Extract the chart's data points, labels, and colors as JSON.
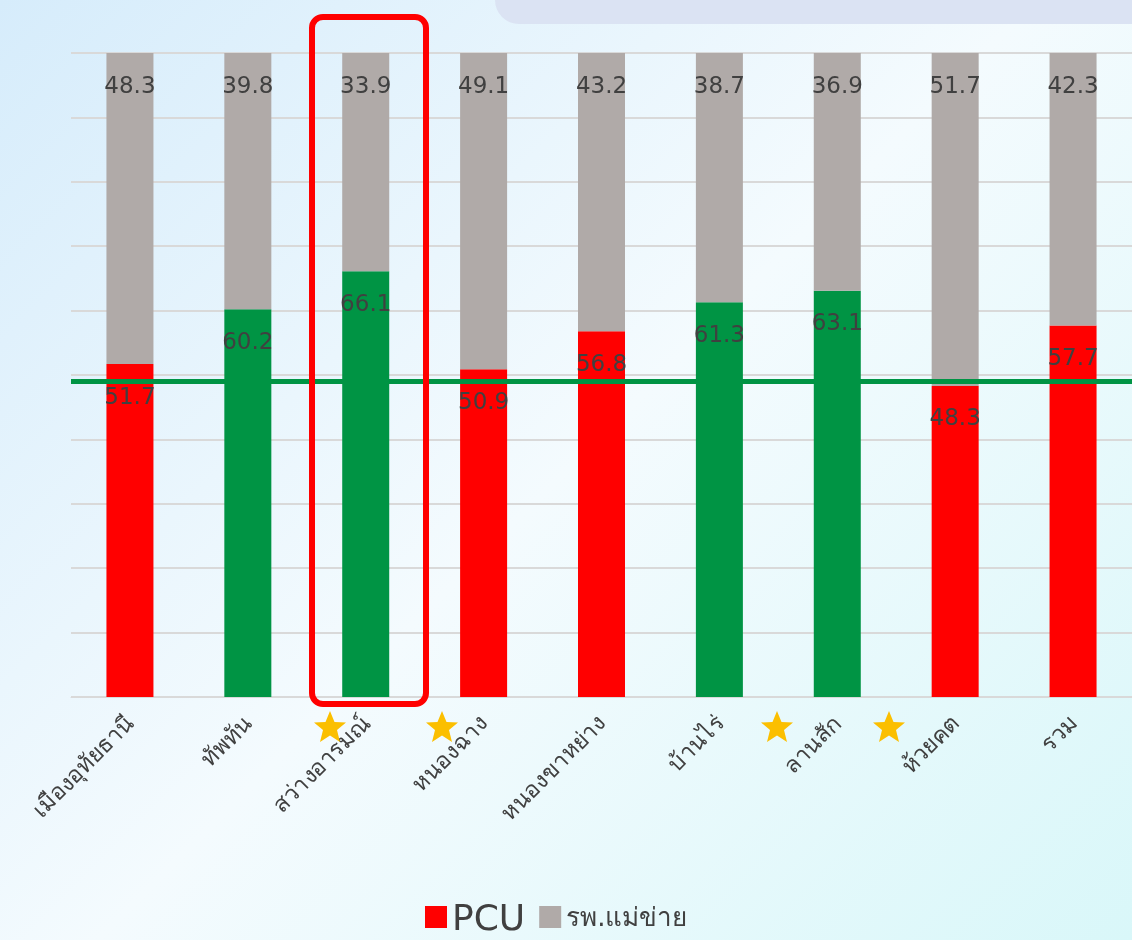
{
  "chart_data": {
    "type": "bar",
    "stacked": true,
    "data_labels": true,
    "grid": "y",
    "legend": "bottom",
    "tick_labels": "x",
    "categories": [
      "เมืองอุทัยธานี",
      "ทัพทัน",
      "สว่างอารมณ์",
      "หนองฉาง",
      "หนองขาหย่าง",
      "บ้านไร่",
      "ลานสัก",
      "ห้วยคต",
      "รวม"
    ],
    "ylim": [
      0,
      100
    ],
    "yticks": [
      {
        "value": 0,
        "label": null
      },
      {
        "value": 10,
        "label": null
      },
      {
        "value": 20,
        "label": null
      },
      {
        "value": 30,
        "label": null
      },
      {
        "value": 40,
        "label": null
      },
      {
        "value": 50,
        "label": null
      },
      {
        "value": 60,
        "label": null
      },
      {
        "value": 70,
        "label": null
      },
      {
        "value": 80,
        "label": null
      },
      {
        "value": 90,
        "label": null
      },
      {
        "value": 100,
        "label": null
      }
    ],
    "series": [
      {
        "name": "PCU",
        "color": "#ff0000",
        "colors": [
          "#ff0000",
          "#009444",
          "#009444",
          "#ff0000",
          "#ff0000",
          "#009444",
          "#009444",
          "#ff0000",
          "#ff0000"
        ],
        "values": [
          51.7,
          60.2,
          66.1,
          50.9,
          56.8,
          61.3,
          63.1,
          48.3,
          57.7
        ]
      },
      {
        "name": "รพ.แม่ข่าย",
        "color": "#b0aaa8",
        "values": [
          48.3,
          39.8,
          33.9,
          49.1,
          43.2,
          38.7,
          36.9,
          51.7,
          42.3
        ]
      }
    ],
    "ref_lines": [
      {
        "axis": "y",
        "value": 49,
        "color": "#009444"
      }
    ]
  }
}
